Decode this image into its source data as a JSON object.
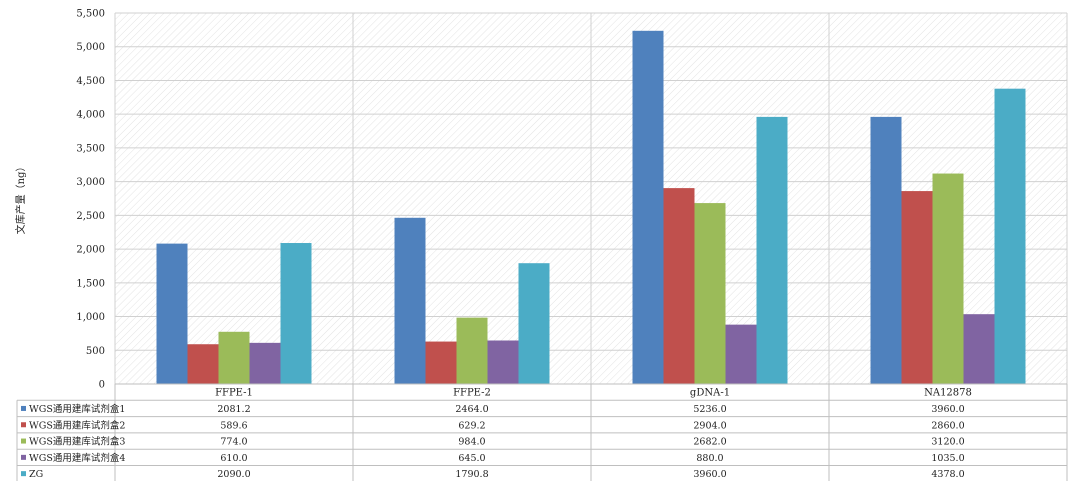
{
  "chart_data": {
    "type": "bar",
    "ylabel": "文库产量（ng）",
    "ylim": [
      0,
      5500
    ],
    "ytick_step": 500,
    "ytick_labels": [
      "0",
      "500",
      "1,000",
      "1,500",
      "2,000",
      "2,500",
      "3,000",
      "3,500",
      "4,000",
      "4,500",
      "5,000",
      "5,500"
    ],
    "categories": [
      "FFPE-1",
      "FFPE-2",
      "gDNA-1",
      "NA12878"
    ],
    "grid": true,
    "legend": "data-table",
    "series": [
      {
        "name": "WGS通用建库试剂盒1",
        "color": "#4F81BD",
        "values": [
          2081.2,
          2464.0,
          5236.0,
          3960.0
        ],
        "labels": [
          "2081.2",
          "2464.0",
          "5236.0",
          "3960.0"
        ]
      },
      {
        "name": "WGS通用建库试剂盒2",
        "color": "#C0504D",
        "values": [
          589.6,
          629.2,
          2904.0,
          2860.0
        ],
        "labels": [
          "589.6",
          "629.2",
          "2904.0",
          "2860.0"
        ]
      },
      {
        "name": "WGS通用建库试剂盒3",
        "color": "#9BBB59",
        "values": [
          774.0,
          984.0,
          2682.0,
          3120.0
        ],
        "labels": [
          "774.0",
          "984.0",
          "2682.0",
          "3120.0"
        ]
      },
      {
        "name": "WGS通用建库试剂盒4",
        "color": "#8064A2",
        "values": [
          610.0,
          645.0,
          880.0,
          1035.0
        ],
        "labels": [
          "610.0",
          "645.0",
          "880.0",
          "1035.0"
        ]
      },
      {
        "name": "ZG",
        "color": "#4BACC6",
        "values": [
          2090.0,
          1790.8,
          3960.0,
          4378.0
        ],
        "labels": [
          "2090.0",
          "1790.8",
          "3960.0",
          "4378.0"
        ]
      }
    ]
  }
}
